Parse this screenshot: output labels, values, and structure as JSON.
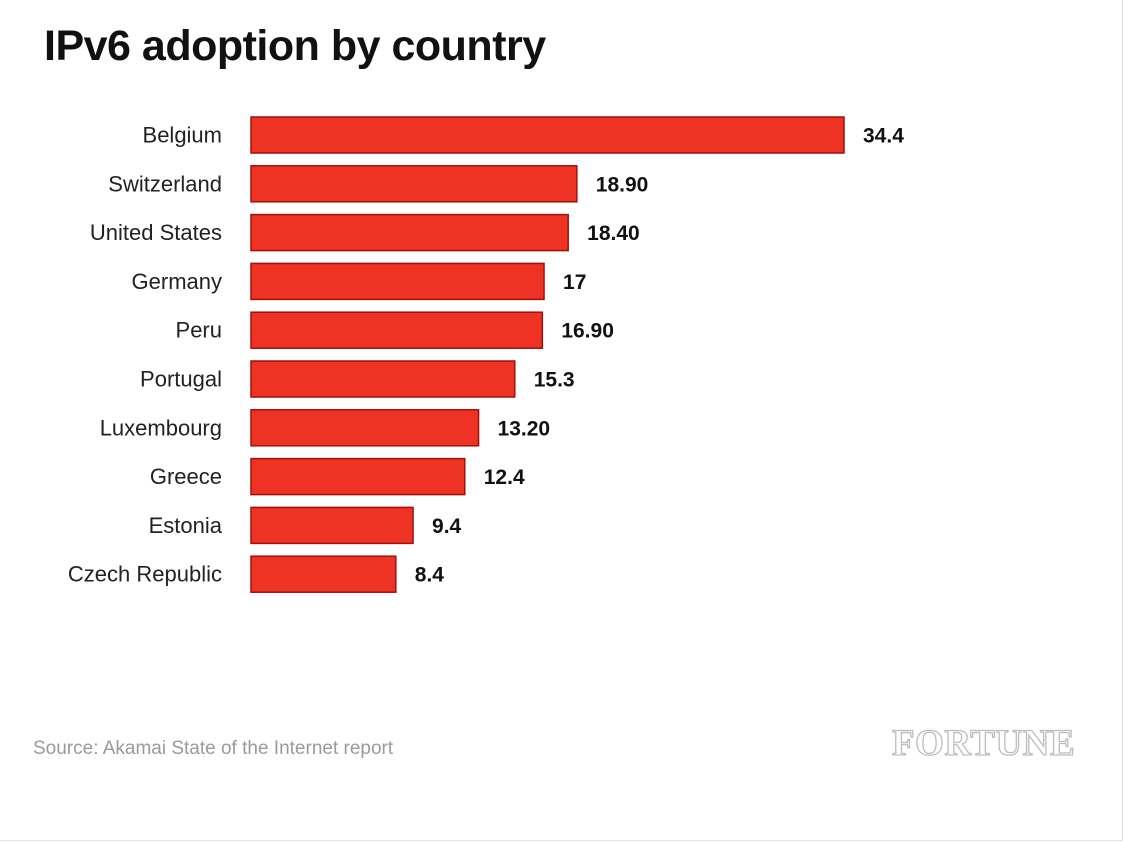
{
  "brand": "FORTUNE",
  "source": "Source: Akamai State of the Internet report",
  "colors": {
    "bar_fill": "#EE3324",
    "bar_stroke": "#A3100A",
    "text": "#111111",
    "source_text": "#9A9A9A",
    "brand_outline": "#BDBDBD"
  },
  "chart_data": {
    "type": "bar",
    "orientation": "horizontal",
    "title": "IPv6 adoption by country",
    "xlabel": "",
    "ylabel": "",
    "grid": false,
    "xlim": [
      0,
      34.4
    ],
    "categories": [
      "Belgium",
      "Switzerland",
      "United States",
      "Germany",
      "Peru",
      "Portugal",
      "Luxembourg",
      "Greece",
      "Estonia",
      "Czech Republic"
    ],
    "values": [
      34.4,
      18.9,
      18.4,
      17,
      16.9,
      15.3,
      13.2,
      12.4,
      9.4,
      8.4
    ],
    "value_labels": [
      "34.4",
      "18.90",
      "18.40",
      "17",
      "16.90",
      "15.3",
      "13.20",
      "12.4",
      "9.4",
      "8.4"
    ]
  }
}
